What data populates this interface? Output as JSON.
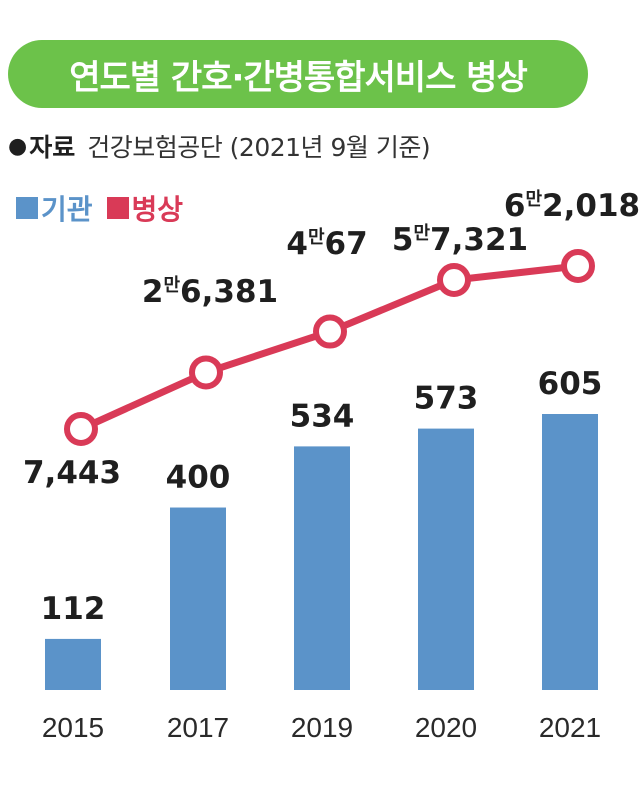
{
  "header": {
    "title": "연도별 간호·간병통합서비스 병상"
  },
  "source": {
    "bullet": "●",
    "label": "자료",
    "text": "건강보험공단 (2021년 9월 기준)"
  },
  "legend": [
    {
      "label": "기관",
      "color": "#5b93c9"
    },
    {
      "label": "병상",
      "color": "#d93a57"
    }
  ],
  "chart_data": {
    "type": "bar",
    "categories": [
      "2015",
      "2017",
      "2019",
      "2020",
      "2021"
    ],
    "series": [
      {
        "name": "기관",
        "type": "bar",
        "values": [
          112,
          400,
          534,
          573,
          605
        ],
        "labels": [
          "112",
          "400",
          "534",
          "573",
          "605"
        ],
        "color": "#5b93c9"
      },
      {
        "name": "병상",
        "type": "line",
        "values": [
          7443,
          26381,
          40067,
          57321,
          62018
        ],
        "labels": [
          {
            "man": "",
            "rest": "7,443"
          },
          {
            "man": "2만",
            "rest": "6,381"
          },
          {
            "man": "4만",
            "rest": "67"
          },
          {
            "man": "5만",
            "rest": "7,321"
          },
          {
            "man": "6만",
            "rest": "2,018"
          }
        ],
        "color": "#d93a57"
      }
    ]
  }
}
